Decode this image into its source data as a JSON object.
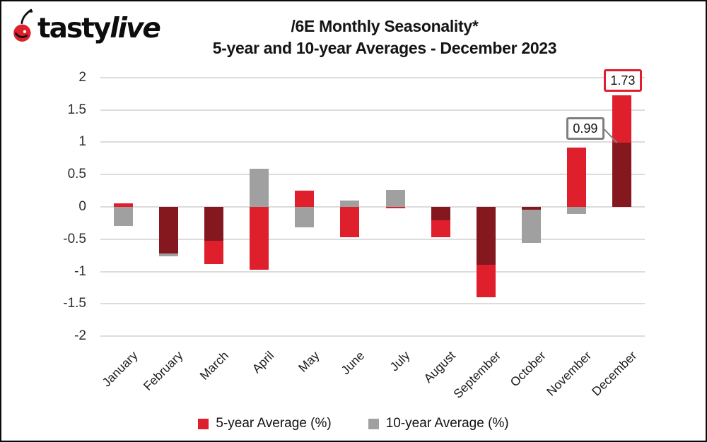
{
  "logo": {
    "brand_left": "tasty",
    "brand_right": "live"
  },
  "title": {
    "line1": "/6E Monthly Seasonality*",
    "line2": "5-year and 10-year Averages - December 2023"
  },
  "colors": {
    "red": "#e01f2c",
    "dark_red": "#85181f",
    "gray": "#a0a0a0",
    "grid": "#dcdcdc",
    "annotation_gray_border": "#7f7f7f",
    "text": "#141414"
  },
  "chart_data": {
    "type": "bar",
    "title": "/6E Monthly Seasonality* 5-year and 10-year Averages - December 2023",
    "categories": [
      "January",
      "February",
      "March",
      "April",
      "May",
      "June",
      "July",
      "August",
      "September",
      "October",
      "November",
      "December"
    ],
    "series": [
      {
        "name": "5-year Average (%)",
        "color_key": "red",
        "values": [
          0.06,
          -0.72,
          -0.88,
          -0.97,
          0.25,
          -0.47,
          -0.02,
          -0.47,
          -1.4,
          -0.04,
          0.92,
          1.73
        ]
      },
      {
        "name": "10-year Average (%)",
        "color_key": "gray",
        "values": [
          -0.29,
          -0.76,
          -0.52,
          0.59,
          -0.32,
          0.1,
          0.26,
          -0.21,
          -0.89,
          -0.56,
          -0.11,
          0.99
        ]
      }
    ],
    "overlap_color_key": "dark_red",
    "ylim": [
      -2,
      2
    ],
    "ytick_step": 0.5,
    "yticks": [
      "2",
      "1.5",
      "1",
      "0.5",
      "0",
      "-0.5",
      "-1",
      "-1.5",
      "-2"
    ],
    "grid": true,
    "legend_position": "bottom",
    "annotations": [
      {
        "text": "0.99",
        "value": 0.99,
        "month": "December",
        "series": "10-year Average (%)",
        "style": "gray",
        "placement": "upper-left"
      },
      {
        "text": "1.73",
        "value": 1.73,
        "month": "December",
        "series": "5-year Average (%)",
        "style": "red",
        "placement": "above"
      }
    ]
  },
  "legend": {
    "items": [
      {
        "label": "5-year Average (%)",
        "color_key": "red"
      },
      {
        "label": "10-year Average (%)",
        "color_key": "gray"
      }
    ]
  }
}
